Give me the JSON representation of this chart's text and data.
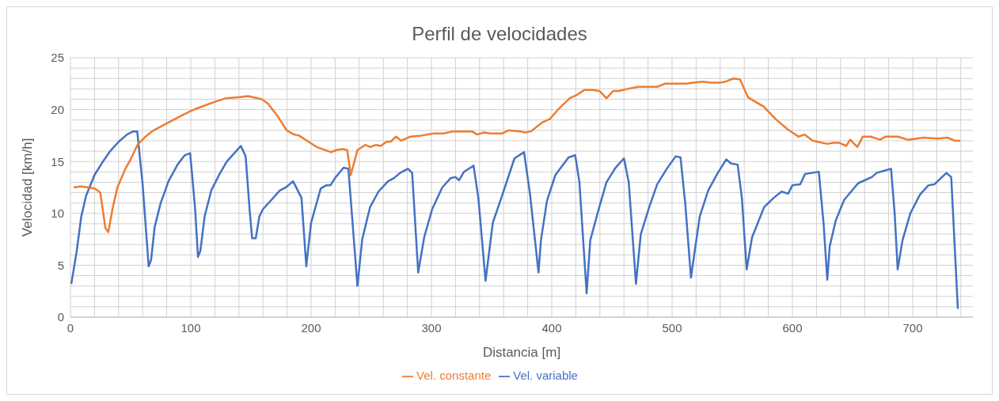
{
  "chart_data": {
    "type": "line",
    "title": "Perfil de velocidades",
    "xlabel": "Distancia [m]",
    "ylabel": "Velocidad [km/h]",
    "xlim": [
      0,
      750
    ],
    "ylim": [
      0,
      25
    ],
    "xticks": [
      0,
      {
        "value": 20,
        "label": null
      },
      {
        "value": 40,
        "label": null
      },
      {
        "value": 60,
        "label": null
      },
      {
        "value": 80,
        "label": null
      },
      100,
      {
        "value": 120,
        "label": null
      },
      {
        "value": 140,
        "label": null
      },
      {
        "value": 160,
        "label": null
      },
      {
        "value": 180,
        "label": null
      },
      200,
      {
        "value": 220,
        "label": null
      },
      {
        "value": 240,
        "label": null
      },
      {
        "value": 260,
        "label": null
      },
      {
        "value": 280,
        "label": null
      },
      300,
      {
        "value": 320,
        "label": null
      },
      {
        "value": 340,
        "label": null
      },
      {
        "value": 360,
        "label": null
      },
      {
        "value": 380,
        "label": null
      },
      400,
      {
        "value": 420,
        "label": null
      },
      {
        "value": 440,
        "label": null
      },
      {
        "value": 460,
        "label": null
      },
      {
        "value": 480,
        "label": null
      },
      500,
      {
        "value": 520,
        "label": null
      },
      {
        "value": 540,
        "label": null
      },
      {
        "value": 560,
        "label": null
      },
      {
        "value": 580,
        "label": null
      },
      600,
      {
        "value": 620,
        "label": null
      },
      {
        "value": 640,
        "label": null
      },
      {
        "value": 660,
        "label": null
      },
      {
        "value": 680,
        "label": null
      },
      700,
      {
        "value": 720,
        "label": null
      },
      {
        "value": 740,
        "label": null
      }
    ],
    "yticks": [
      0,
      {
        "value": 1,
        "label": null
      },
      {
        "value": 2,
        "label": null
      },
      {
        "value": 3,
        "label": null
      },
      {
        "value": 4,
        "label": null
      },
      5,
      {
        "value": 6,
        "label": null
      },
      {
        "value": 7,
        "label": null
      },
      {
        "value": 8,
        "label": null
      },
      {
        "value": 9,
        "label": null
      },
      10,
      {
        "value": 11,
        "label": null
      },
      {
        "value": 12,
        "label": null
      },
      {
        "value": 13,
        "label": null
      },
      {
        "value": 14,
        "label": null
      },
      15,
      {
        "value": 16,
        "label": null
      },
      {
        "value": 17,
        "label": null
      },
      {
        "value": 18,
        "label": null
      },
      {
        "value": 19,
        "label": null
      },
      20,
      {
        "value": 21,
        "label": null
      },
      {
        "value": 22,
        "label": null
      },
      {
        "value": 23,
        "label": null
      },
      {
        "value": 24,
        "label": null
      },
      25
    ],
    "grid": true,
    "legend": "bottom",
    "marker": "none",
    "line_style": "solid",
    "series": [
      {
        "name": "Vel. variable",
        "color": "#4472c4",
        "x": [
          0.7,
          5,
          9,
          13,
          20,
          27,
          33,
          40,
          47,
          52,
          55.5,
          60,
          65,
          67,
          70,
          75,
          81.5,
          89,
          95,
          99.5,
          103.5,
          106,
          108,
          111.5,
          117,
          123.5,
          130,
          137,
          141.6,
          145.6,
          149,
          151,
          154,
          157,
          160,
          167,
          174,
          179,
          185,
          192,
          196,
          200,
          208,
          212.5,
          216,
          220.5,
          227,
          231,
          238.5,
          242.5,
          249,
          256,
          264,
          269,
          274,
          280.5,
          284,
          289,
          294,
          300.6,
          309,
          316,
          320,
          323,
          327,
          335,
          339,
          345,
          351,
          359,
          369,
          377,
          382,
          389,
          391,
          396,
          403,
          414,
          419.5,
          423,
          429,
          432,
          439,
          445.5,
          453,
          460,
          464,
          470,
          474,
          481,
          487.6,
          495.6,
          503,
          507,
          511,
          515.7,
          519,
          523,
          530,
          538,
          545,
          549,
          554.5,
          558,
          562,
          566.5,
          570,
          576.5,
          584.5,
          591,
          596.5,
          600,
          606.5,
          610.5,
          616,
          622,
          626,
          629,
          631,
          636,
          643,
          654.6,
          666,
          670,
          676,
          682,
          685,
          687.5,
          691.5,
          698,
          706,
          713,
          718,
          723.5,
          728,
          732,
          737.5
        ],
        "values": [
          3.2,
          6.2,
          9.7,
          11.7,
          13.7,
          15,
          16,
          16.9,
          17.6,
          17.9,
          17.9,
          12.8,
          4.9,
          5.5,
          8.7,
          11,
          13.1,
          14.7,
          15.6,
          15.8,
          10.6,
          5.8,
          6.4,
          9.7,
          12.2,
          13.7,
          15,
          15.9,
          16.5,
          15.5,
          10.2,
          7.6,
          7.6,
          9.7,
          10.4,
          11.3,
          12.2,
          12.5,
          13.1,
          11.5,
          4.9,
          9.1,
          12.4,
          12.7,
          12.7,
          13.5,
          14.4,
          14.3,
          3,
          7.5,
          10.6,
          12.1,
          13.1,
          13.4,
          13.9,
          14.3,
          13.9,
          4.3,
          7.7,
          10.4,
          12.5,
          13.4,
          13.5,
          13.2,
          14,
          14.6,
          11.5,
          3.5,
          9.1,
          11.8,
          15.3,
          15.9,
          11.8,
          4.3,
          7.4,
          11.2,
          13.7,
          15.4,
          15.6,
          13,
          2.3,
          7.4,
          10.4,
          13,
          14.4,
          15.3,
          13,
          3.2,
          8,
          10.6,
          12.8,
          14.3,
          15.5,
          15.4,
          10.9,
          3.8,
          6.5,
          9.7,
          12.2,
          13.9,
          15.2,
          14.8,
          14.7,
          11.5,
          4.6,
          7.7,
          8.7,
          10.6,
          11.5,
          12.1,
          11.9,
          12.7,
          12.8,
          13.8,
          13.9,
          14,
          8.9,
          3.6,
          6.8,
          9.3,
          11.3,
          12.9,
          13.5,
          13.9,
          14.1,
          14.3,
          10,
          4.6,
          7.4,
          10,
          11.8,
          12.7,
          12.8,
          13.4,
          13.9,
          13.5,
          0.8
        ]
      },
      {
        "name": "Vel. constante",
        "color": "#ed7d31",
        "x": [
          2.7,
          8.7,
          15,
          20,
          24.8,
          29,
          31.5,
          34.9,
          39,
          45.6,
          50,
          55.7,
          62.4,
          69,
          80.5,
          92,
          100.6,
          107,
          118.8,
          129.5,
          141,
          147.6,
          159,
          164,
          172,
          179.8,
          185.8,
          190,
          197.9,
          204.6,
          216.6,
          221,
          226,
          230,
          233,
          238.5,
          245,
          249,
          254,
          258,
          262.6,
          266,
          270.6,
          275,
          282.6,
          291.6,
          302,
          310,
          318,
          333.7,
          338,
          343.6,
          349,
          358.6,
          364,
          374,
          378,
          382.6,
          392.6,
          398.5,
          406,
          415,
          420.8,
          427,
          434,
          439.5,
          445.5,
          451,
          456,
          463,
          472,
          487.7,
          494,
          512,
          517.7,
          525.7,
          532,
          539.7,
          544.5,
          551,
          556.5,
          563,
          570,
          576,
          586,
          590,
          596,
          600,
          605,
          610,
          617,
          629,
          634,
          639,
          644.7,
          648,
          654,
          658.6,
          665,
          673,
          677.5,
          687.5,
          696,
          709,
          721,
          729,
          735,
          739.5
        ],
        "values": [
          12.5,
          12.6,
          12.5,
          12.4,
          12,
          8.6,
          8.2,
          10.4,
          12.5,
          14.3,
          15.2,
          16.6,
          17.4,
          18,
          18.7,
          19.4,
          19.9,
          20.2,
          20.7,
          21.1,
          21.2,
          21.3,
          21,
          20.6,
          19.4,
          18,
          17.6,
          17.5,
          16.9,
          16.4,
          15.9,
          16.1,
          16.2,
          16.1,
          13.7,
          16.1,
          16.6,
          16.4,
          16.6,
          16.5,
          16.9,
          16.9,
          17.4,
          17,
          17.4,
          17.5,
          17.7,
          17.7,
          17.9,
          17.9,
          17.6,
          17.8,
          17.7,
          17.7,
          18,
          17.9,
          17.8,
          17.9,
          18.8,
          19.1,
          20.1,
          21.1,
          21.4,
          21.9,
          21.9,
          21.8,
          21.1,
          21.8,
          21.8,
          22,
          22.2,
          22.2,
          22.5,
          22.5,
          22.6,
          22.7,
          22.6,
          22.6,
          22.7,
          23,
          22.9,
          21.2,
          20.7,
          20.3,
          19.1,
          18.7,
          18.1,
          17.8,
          17.4,
          17.6,
          17,
          16.7,
          16.8,
          16.8,
          16.5,
          17.1,
          16.4,
          17.4,
          17.4,
          17.1,
          17.4,
          17.4,
          17.1,
          17.3,
          17.2,
          17.3,
          17,
          17
        ]
      }
    ]
  }
}
